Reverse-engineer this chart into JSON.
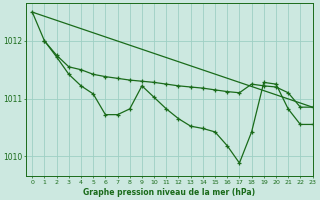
{
  "title": "Graphe pression niveau de la mer (hPa)",
  "bg_color": "#cce8e0",
  "grid_color": "#9ecfc4",
  "line_color": "#1a6b1a",
  "xlim": [
    -0.5,
    23
  ],
  "ylim": [
    1009.65,
    1012.65
  ],
  "yticks": [
    1010,
    1011,
    1012
  ],
  "xticks": [
    0,
    1,
    2,
    3,
    4,
    5,
    6,
    7,
    8,
    9,
    10,
    11,
    12,
    13,
    14,
    15,
    16,
    17,
    18,
    19,
    20,
    21,
    22,
    23
  ],
  "series_straight": {
    "x": [
      0,
      23
    ],
    "y": [
      1012.5,
      1010.85
    ]
  },
  "series_upper": {
    "x": [
      1,
      2,
      3,
      4,
      5,
      6,
      7,
      8,
      9,
      10,
      11,
      12,
      13,
      14,
      15,
      16,
      17,
      18,
      19,
      20,
      21,
      22,
      23
    ],
    "y": [
      1012.0,
      1011.75,
      1011.55,
      1011.5,
      1011.42,
      1011.38,
      1011.35,
      1011.32,
      1011.3,
      1011.28,
      1011.25,
      1011.22,
      1011.2,
      1011.18,
      1011.15,
      1011.12,
      1011.1,
      1011.25,
      1011.22,
      1011.2,
      1011.1,
      1010.85,
      1010.85
    ]
  },
  "series_lower": {
    "x": [
      0,
      1,
      2,
      3,
      4,
      5,
      6,
      7,
      8,
      9,
      10,
      11,
      12,
      13,
      14,
      15,
      16,
      17,
      18,
      19,
      20,
      21,
      22,
      23
    ],
    "y": [
      1012.5,
      1012.0,
      1011.72,
      1011.42,
      1011.22,
      1011.08,
      1010.72,
      1010.72,
      1010.82,
      1011.22,
      1011.02,
      1010.82,
      1010.65,
      1010.52,
      1010.48,
      1010.42,
      1010.18,
      1009.88,
      1010.42,
      1011.28,
      1011.25,
      1010.82,
      1010.55,
      1010.55
    ]
  }
}
